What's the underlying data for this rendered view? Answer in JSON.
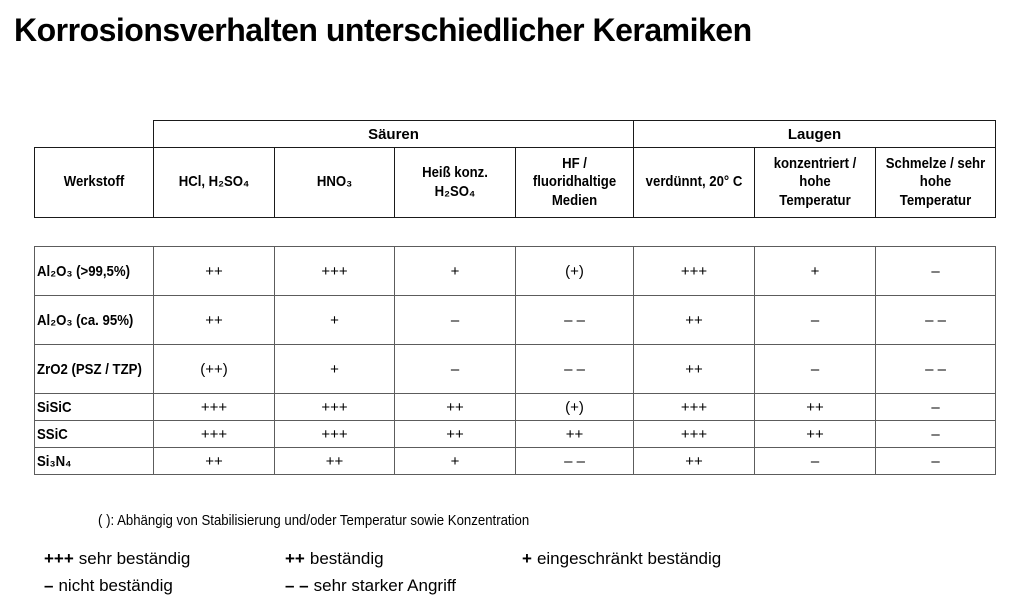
{
  "title": "Korrosionsverhalten unterschiedlicher Keramiken",
  "table": {
    "groups": {
      "saeuren": "Säuren",
      "laugen": "Laugen"
    },
    "col_headers": [
      "Werkstoff",
      "HCl, H₂SO₄",
      "HNO₃",
      "Heiß konz. H₂SO₄",
      "HF / fluoridhaltige Medien",
      "verdünnt, 20° C",
      "konzentriert / hohe Temperatur",
      "Schmelze / sehr hohe Temperatur"
    ],
    "rows": [
      {
        "material": "Al₂O₃ (>99,5%)",
        "values": [
          "++",
          "+++",
          "+",
          "(+)",
          "+++",
          "+",
          "–"
        ]
      },
      {
        "material": "Al₂O₃ (ca. 95%)",
        "values": [
          "++",
          "+",
          "–",
          "– –",
          "++",
          "–",
          "– –"
        ]
      },
      {
        "material": "ZrO2 (PSZ / TZP)",
        "values": [
          "(++)",
          "+",
          "–",
          "– –",
          "++",
          "–",
          "– –"
        ]
      },
      {
        "material": "SiSiC",
        "values": [
          "+++",
          "+++",
          "++",
          "(+)",
          "+++",
          "++",
          "–"
        ]
      },
      {
        "material": "SSiC",
        "values": [
          "+++",
          "+++",
          "++",
          "++",
          "+++",
          "++",
          "–"
        ]
      },
      {
        "material": "Si₃N₄",
        "values": [
          "++",
          "++",
          "+",
          "– –",
          "++",
          "–",
          "–"
        ]
      }
    ]
  },
  "footnote": "( ): Abhängig von Stabilisierung und/oder Temperatur sowie Konzentration",
  "legend": {
    "row1": [
      {
        "symbol": "+++",
        "label": "sehr beständig"
      },
      {
        "symbol": "++",
        "label": "beständig"
      },
      {
        "symbol": "+",
        "label": "eingeschränkt beständig"
      }
    ],
    "row2": [
      {
        "symbol": "–",
        "label": "nicht beständig"
      },
      {
        "symbol": "– –",
        "label": "sehr starker Angriff"
      }
    ]
  }
}
